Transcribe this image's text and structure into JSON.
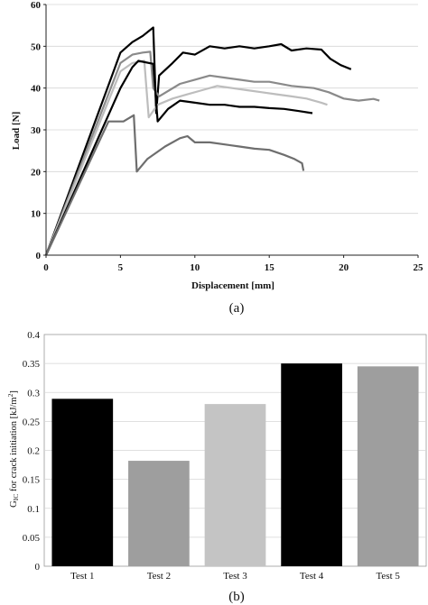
{
  "chart_data": [
    {
      "type": "line",
      "caption": "(a)",
      "xlabel": "Displacement [mm]",
      "ylabel": "Load [N]",
      "xlim": [
        0,
        25
      ],
      "ylim": [
        0,
        60
      ],
      "xticks": [
        "0",
        "5",
        "10",
        "15",
        "20",
        "25"
      ],
      "yticks": [
        "0",
        "10",
        "20",
        "30",
        "40",
        "50",
        "60"
      ],
      "series": [
        {
          "color": "#000000",
          "points": [
            [
              0,
              0
            ],
            [
              5,
              48.5
            ],
            [
              5.8,
              51
            ],
            [
              6.5,
              52.5
            ],
            [
              7.2,
              54.5
            ],
            [
              7.4,
              34
            ],
            [
              7.6,
              43
            ],
            [
              8.5,
              46
            ],
            [
              9.2,
              48.5
            ],
            [
              10,
              48
            ],
            [
              11,
              50
            ],
            [
              12,
              49.5
            ],
            [
              13,
              50
            ],
            [
              14,
              49.5
            ],
            [
              15,
              50
            ],
            [
              15.8,
              50.5
            ],
            [
              16.5,
              49
            ],
            [
              17.5,
              49.5
            ],
            [
              18.5,
              49.2
            ],
            [
              19.1,
              47
            ],
            [
              19.8,
              45.5
            ],
            [
              20.5,
              44.5
            ]
          ]
        },
        {
          "color": "#8a8a8a",
          "points": [
            [
              0,
              0
            ],
            [
              5,
              46
            ],
            [
              5.8,
              48
            ],
            [
              6.5,
              48.5
            ],
            [
              7,
              48.7
            ],
            [
              7.2,
              40
            ],
            [
              7.6,
              38
            ],
            [
              9,
              41
            ],
            [
              10,
              42
            ],
            [
              11,
              43
            ],
            [
              12,
              42.5
            ],
            [
              13,
              42
            ],
            [
              14,
              41.5
            ],
            [
              15,
              41.5
            ],
            [
              16.5,
              40.5
            ],
            [
              18,
              40
            ],
            [
              19,
              39
            ],
            [
              20,
              37.5
            ],
            [
              21,
              37
            ],
            [
              22,
              37.4
            ],
            [
              22.4,
              37
            ]
          ]
        },
        {
          "color": "#bdbdbd",
          "points": [
            [
              0,
              0
            ],
            [
              5,
              44
            ],
            [
              5.8,
              46
            ],
            [
              6.6,
              46.5
            ],
            [
              6.9,
              33
            ],
            [
              7.5,
              36
            ],
            [
              8.5,
              37.5
            ],
            [
              9.5,
              38.5
            ],
            [
              10.5,
              39.5
            ],
            [
              11.5,
              40.5
            ],
            [
              12.5,
              40
            ],
            [
              13.5,
              39.5
            ],
            [
              14.5,
              39
            ],
            [
              15.5,
              38.5
            ],
            [
              16.5,
              38
            ],
            [
              17.5,
              37.5
            ],
            [
              18.5,
              36.5
            ],
            [
              18.9,
              36
            ]
          ]
        },
        {
          "color": "#000000",
          "points": [
            [
              0,
              0
            ],
            [
              5,
              40
            ],
            [
              5.8,
              45
            ],
            [
              6.2,
              46.5
            ],
            [
              7.2,
              45.8
            ],
            [
              7.5,
              32
            ],
            [
              8.2,
              35
            ],
            [
              9,
              37
            ],
            [
              10,
              36.5
            ],
            [
              11,
              36
            ],
            [
              12,
              36
            ],
            [
              13,
              35.5
            ],
            [
              14,
              35.5
            ],
            [
              15,
              35.2
            ],
            [
              16,
              35
            ],
            [
              17,
              34.5
            ],
            [
              17.9,
              34
            ]
          ]
        },
        {
          "color": "#6e6e6e",
          "points": [
            [
              0,
              0
            ],
            [
              4.2,
              32
            ],
            [
              5.2,
              32
            ],
            [
              5.9,
              33.5
            ],
            [
              6.1,
              20
            ],
            [
              6.8,
              23
            ],
            [
              8,
              26
            ],
            [
              9,
              28
            ],
            [
              9.5,
              28.5
            ],
            [
              10,
              27
            ],
            [
              11,
              27
            ],
            [
              12,
              26.5
            ],
            [
              13,
              26
            ],
            [
              14,
              25.5
            ],
            [
              15,
              25.2
            ],
            [
              16,
              24
            ],
            [
              16.7,
              23
            ],
            [
              17.2,
              22
            ],
            [
              17.3,
              20.2
            ]
          ]
        }
      ]
    },
    {
      "type": "bar",
      "caption": "(b)",
      "ylabel_main": "G",
      "ylabel_sub": "IC",
      "ylabel_rest": " for crack initiation [kJ/m",
      "ylabel_sup": "2",
      "ylabel_end": "]",
      "ylim": [
        0,
        0.4
      ],
      "yticks": [
        "0",
        "0.05",
        "0.1",
        "0.15",
        "0.2",
        "0.25",
        "0.3",
        "0.35",
        "0.4"
      ],
      "categories": [
        "Test 1",
        "Test 2",
        "Test 3",
        "Test 4",
        "Test 5"
      ],
      "values": [
        0.289,
        0.182,
        0.28,
        0.35,
        0.345
      ],
      "colors": [
        "#000000",
        "#9e9e9e",
        "#c4c4c4",
        "#000000",
        "#9e9e9e"
      ]
    }
  ]
}
